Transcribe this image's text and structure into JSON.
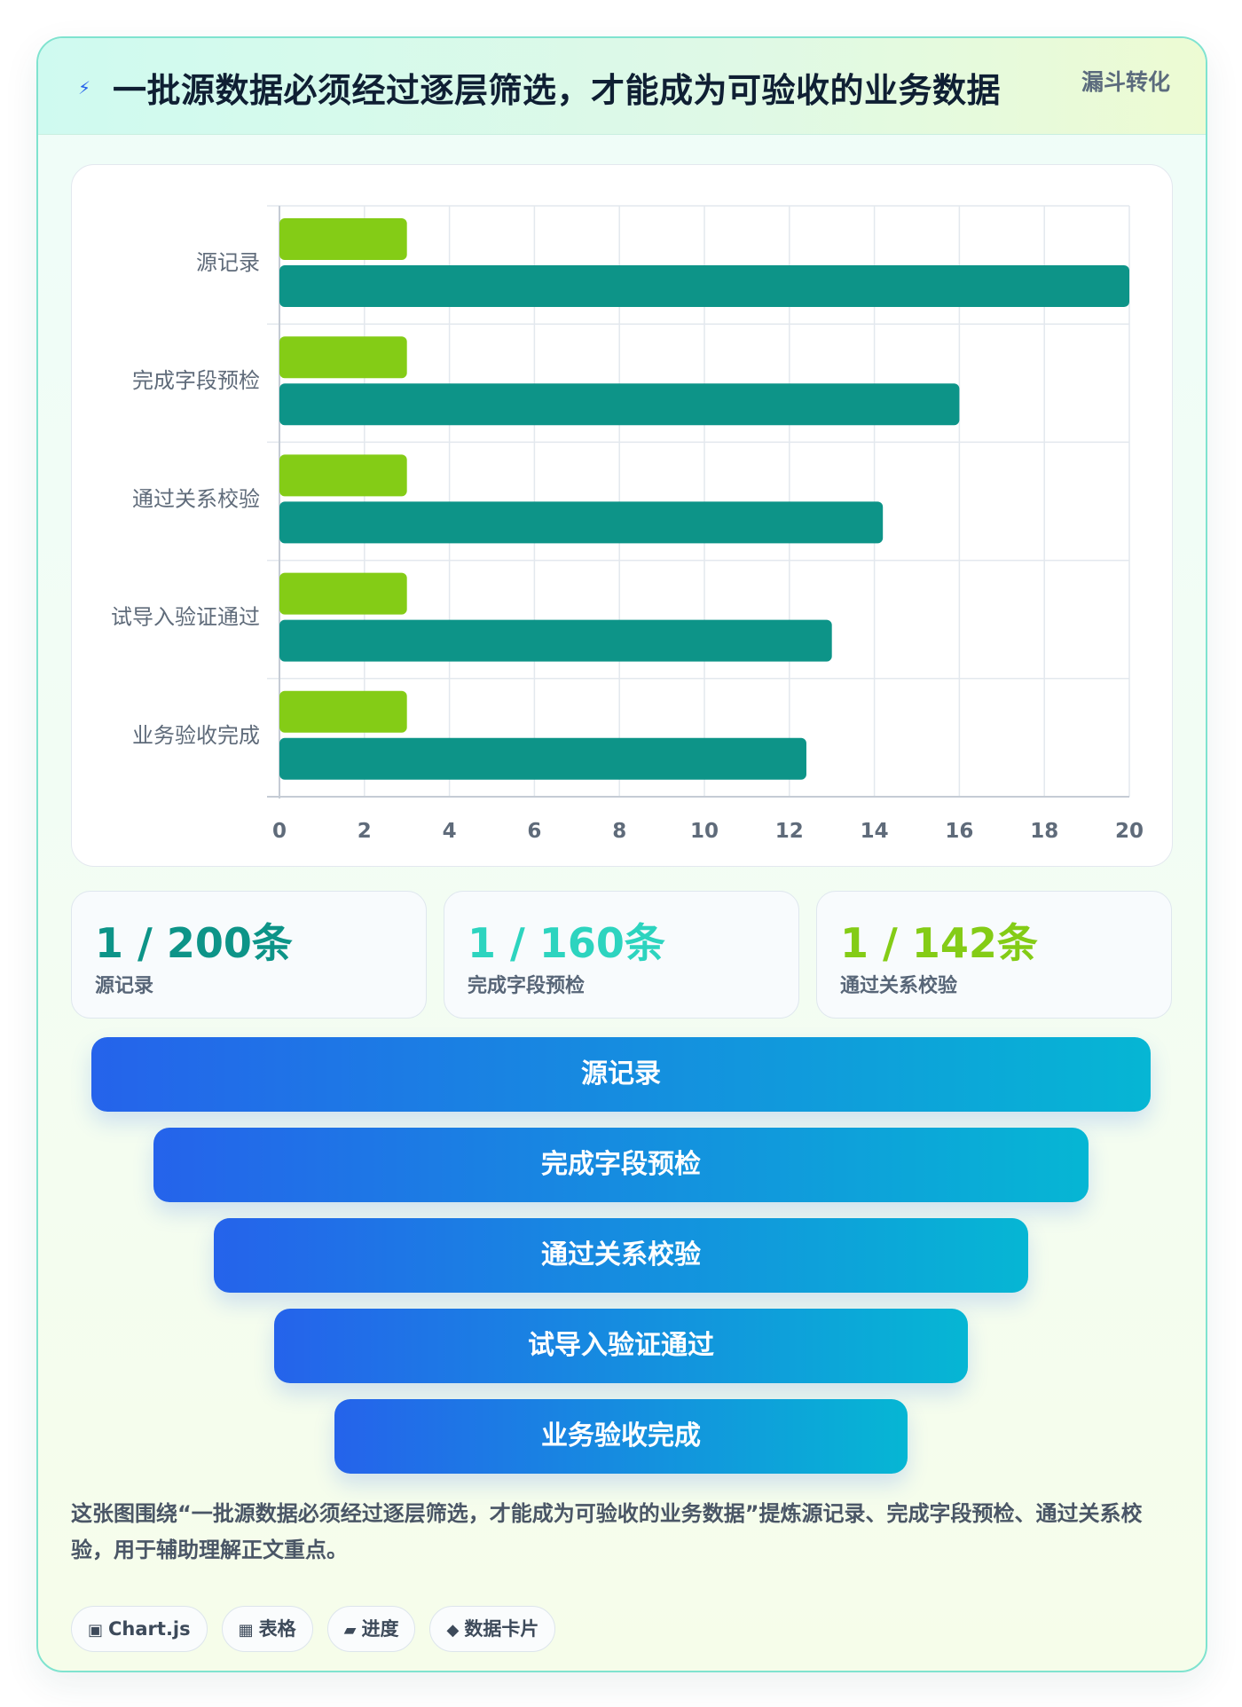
{
  "header": {
    "icon": "lightning-icon",
    "title": "一批源数据必须经过逐层筛选，才能成为可验收的业务数据",
    "badge": "漏斗转化"
  },
  "chart_data": {
    "type": "bar",
    "orientation": "horizontal",
    "categories": [
      "源记录",
      "完成字段预检",
      "通过关系校验",
      "试导入验证通过",
      "业务验收完成"
    ],
    "series": [
      {
        "values": [
          3,
          3,
          3,
          3,
          3
        ],
        "color": "#84cc16"
      },
      {
        "values": [
          20,
          16,
          14.2,
          13,
          12.4
        ],
        "color": "#0d9488"
      }
    ],
    "xlim": [
      0,
      20
    ],
    "xticks": [
      "0",
      "2",
      "4",
      "6",
      "8",
      "10",
      "12",
      "14",
      "16",
      "18",
      "20"
    ],
    "grid": true,
    "legend": "none"
  },
  "stats": [
    {
      "value": "1 / 200条",
      "label": "源记录",
      "color": "#0d9488"
    },
    {
      "value": "1 / 160条",
      "label": "完成字段预检",
      "color": "#2dd4bf"
    },
    {
      "value": "1 / 142条",
      "label": "通过关系校验",
      "color": "#84cc16"
    }
  ],
  "funnel": [
    {
      "label": "源记录"
    },
    {
      "label": "完成字段预检"
    },
    {
      "label": "通过关系校验"
    },
    {
      "label": "试导入验证通过"
    },
    {
      "label": "业务验收完成"
    }
  ],
  "description": "这张图围绕“一批源数据必须经过逐层筛选，才能成为可验收的业务数据”提炼源记录、完成字段预检、通过关系校验，用于辅助理解正文重点。",
  "tags": [
    {
      "icon": "▣",
      "icon_name": "chart-icon",
      "label": "Chart.js"
    },
    {
      "icon": "▦",
      "icon_name": "table-icon",
      "label": "表格"
    },
    {
      "icon": "▰",
      "icon_name": "progress-icon",
      "label": "进度"
    },
    {
      "icon": "◆",
      "icon_name": "data-card-icon",
      "label": "数据卡片"
    }
  ]
}
